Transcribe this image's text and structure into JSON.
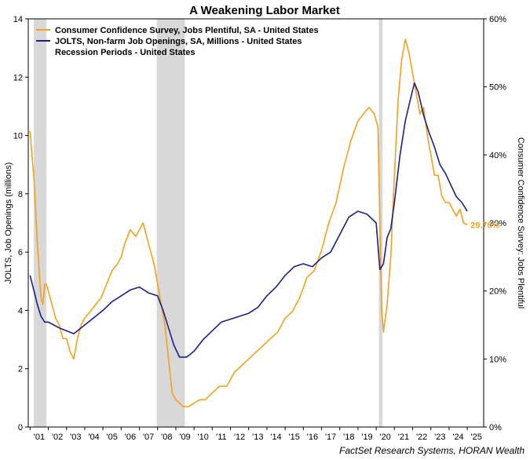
{
  "chart_data": {
    "type": "line",
    "title": "A Weakening Labor Market",
    "source": "FactSet Research Systems, HORAN Wealth",
    "ylabel_left": "JOLTS, Job Openings (millions)",
    "ylabel_right": "Consumer Confidence Survey: Jobs Plentiful",
    "y_left": {
      "min": 0,
      "max": 14,
      "ticks": [
        "0",
        "2",
        "4",
        "6",
        "8",
        "10",
        "12",
        "14"
      ]
    },
    "y_right": {
      "min": 0,
      "max": 60,
      "ticks": [
        "0%",
        "10%",
        "20%",
        "30%",
        "40%",
        "50%",
        "60%"
      ]
    },
    "x_ticks": [
      "'01",
      "'02",
      "'03",
      "'04",
      "'05",
      "'06",
      "'07",
      "'08",
      "'09",
      "'10",
      "'11",
      "'12",
      "'13",
      "'14",
      "'15",
      "'16",
      "'17",
      "'18",
      "'19",
      "'20",
      "'21",
      "'22",
      "'23",
      "'24",
      "'25"
    ],
    "x_tick_years": [
      2001,
      2002,
      2003,
      2004,
      2005,
      2006,
      2007,
      2008,
      2009,
      2010,
      2011,
      2012,
      2013,
      2014,
      2015,
      2016,
      2017,
      2018,
      2019,
      2020,
      2021,
      2022,
      2023,
      2024,
      2025
    ],
    "x_range": [
      2000.9,
      2025.9
    ],
    "grid": false,
    "legend_position": "top-left",
    "recessions": [
      {
        "start": 2001.2,
        "end": 2001.9
      },
      {
        "start": 2007.95,
        "end": 2009.5
      },
      {
        "start": 2020.15,
        "end": 2020.35
      }
    ],
    "end_label": {
      "text": "29.70%",
      "series": 0
    },
    "series": [
      {
        "name": "Consumer Confidence Survey, Jobs Plentiful, SA - United States",
        "axis": "right",
        "color": "#F5A01A",
        "x": [
          2001.0,
          2001.1,
          2001.2,
          2001.3,
          2001.4,
          2001.5,
          2001.6,
          2001.7,
          2001.8,
          2001.9,
          2002.0,
          2002.2,
          2002.4,
          2002.6,
          2002.8,
          2003.0,
          2003.2,
          2003.4,
          2003.6,
          2003.8,
          2004.0,
          2004.3,
          2004.6,
          2004.9,
          2005.2,
          2005.5,
          2005.8,
          2006.0,
          2006.2,
          2006.5,
          2006.8,
          2007.0,
          2007.2,
          2007.4,
          2007.6,
          2007.8,
          2008.0,
          2008.2,
          2008.4,
          2008.6,
          2008.8,
          2009.0,
          2009.2,
          2009.4,
          2009.7,
          2010.0,
          2010.3,
          2010.6,
          2011.0,
          2011.4,
          2011.8,
          2012.2,
          2012.6,
          2013.0,
          2013.4,
          2013.8,
          2014.2,
          2014.6,
          2015.0,
          2015.4,
          2015.8,
          2016.2,
          2016.6,
          2017.0,
          2017.4,
          2017.8,
          2018.2,
          2018.6,
          2019.0,
          2019.3,
          2019.6,
          2019.9,
          2020.1,
          2020.2,
          2020.3,
          2020.4,
          2020.6,
          2020.8,
          2021.0,
          2021.2,
          2021.4,
          2021.6,
          2021.8,
          2022.0,
          2022.2,
          2022.4,
          2022.6,
          2022.8,
          2023.0,
          2023.2,
          2023.4,
          2023.6,
          2023.8,
          2024.0,
          2024.2,
          2024.4,
          2024.6,
          2024.8,
          2025.0
        ],
        "y": [
          43.5,
          40,
          37,
          32,
          27,
          23,
          19,
          18,
          21,
          21,
          20,
          18,
          16,
          15,
          13,
          13,
          11,
          10,
          13,
          15,
          16,
          17,
          18,
          19,
          21,
          23,
          24,
          25,
          27,
          29,
          28,
          29,
          30,
          28,
          26,
          24,
          21,
          18,
          15,
          10,
          5,
          4,
          3.5,
          3,
          3,
          3.5,
          4,
          4,
          5,
          6,
          6,
          8,
          9,
          10,
          11,
          12,
          13,
          14,
          16,
          17,
          19,
          22,
          23,
          26,
          30,
          33,
          38,
          42,
          45,
          46,
          47,
          46,
          44,
          30,
          17,
          14,
          18,
          25,
          37,
          48,
          54,
          57,
          55,
          52,
          49,
          46,
          47,
          43,
          40,
          37,
          37,
          34,
          33,
          33,
          32,
          31,
          32,
          30,
          29.7
        ]
      },
      {
        "name": "JOLTS, Non-farm Job Openings, SA, Millions - United States",
        "axis": "left",
        "color": "#1B1F8A",
        "x": [
          2001.0,
          2001.2,
          2001.4,
          2001.6,
          2001.8,
          2002.0,
          2002.3,
          2002.6,
          2003.0,
          2003.4,
          2003.8,
          2004.2,
          2004.6,
          2005.0,
          2005.5,
          2006.0,
          2006.5,
          2007.0,
          2007.5,
          2008.0,
          2008.3,
          2008.6,
          2008.9,
          2009.2,
          2009.6,
          2010.0,
          2010.5,
          2011.0,
          2011.5,
          2012.0,
          2012.5,
          2013.0,
          2013.5,
          2014.0,
          2014.5,
          2015.0,
          2015.5,
          2016.0,
          2016.5,
          2017.0,
          2017.5,
          2018.0,
          2018.5,
          2019.0,
          2019.5,
          2020.0,
          2020.2,
          2020.4,
          2020.6,
          2020.8,
          2021.0,
          2021.3,
          2021.6,
          2021.9,
          2022.1,
          2022.3,
          2022.6,
          2022.9,
          2023.2,
          2023.5,
          2023.8,
          2024.1,
          2024.4,
          2024.7,
          2025.0
        ],
        "y": [
          5.2,
          4.7,
          4.2,
          3.8,
          3.6,
          3.6,
          3.5,
          3.4,
          3.3,
          3.2,
          3.4,
          3.6,
          3.8,
          4.0,
          4.3,
          4.5,
          4.7,
          4.8,
          4.6,
          4.5,
          4.0,
          3.4,
          2.8,
          2.4,
          2.4,
          2.6,
          3.0,
          3.3,
          3.6,
          3.7,
          3.8,
          3.9,
          4.1,
          4.5,
          4.8,
          5.2,
          5.5,
          5.6,
          5.5,
          5.8,
          6.0,
          6.6,
          7.2,
          7.4,
          7.3,
          7.0,
          5.4,
          5.6,
          6.5,
          6.8,
          7.7,
          9.3,
          10.5,
          11.3,
          11.8,
          11.5,
          10.7,
          10.1,
          9.6,
          9.0,
          8.7,
          8.3,
          7.9,
          7.7,
          7.4
        ]
      }
    ]
  }
}
